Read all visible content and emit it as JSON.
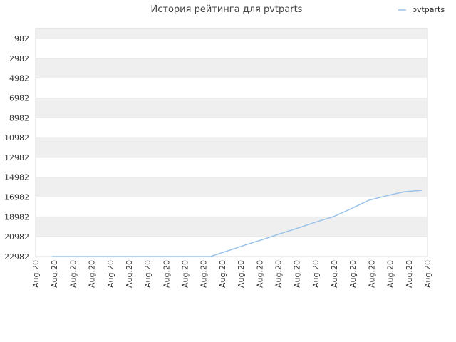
{
  "chart_data": {
    "type": "line",
    "title": "История рейтинга для pvtparts",
    "xlabel": "",
    "ylabel": "",
    "legend_position": "top-right",
    "y_inverted": true,
    "grid": true,
    "band_colors": [
      "#efefef",
      "#ffffff"
    ],
    "y_ticks": [
      982,
      2982,
      4982,
      6982,
      8982,
      10982,
      12982,
      14982,
      16982,
      18982,
      20982,
      22982
    ],
    "ylim": [
      22982,
      0
    ],
    "x_tick_labels": [
      "Aug.20",
      "Aug.20",
      "Aug.20",
      "Aug.20",
      "Aug.20",
      "Aug.20",
      "Aug.20",
      "Aug.20",
      "Aug.20",
      "Aug.20",
      "Aug.20",
      "Aug.20",
      "Aug.20",
      "Aug.20",
      "Aug.20",
      "Aug.20",
      "Aug.20",
      "Aug.20",
      "Aug.20",
      "Aug.20",
      "Aug.20",
      "Aug.20"
    ],
    "series": [
      {
        "name": "pvtparts",
        "color": "#99c3ea",
        "values": [
          22982,
          22982,
          22982,
          22982,
          22982,
          22982,
          22982,
          22982,
          22982,
          22982,
          22400,
          21800,
          21250,
          20650,
          20100,
          19500,
          18950,
          18150,
          17300,
          16850,
          16450,
          16300
        ]
      }
    ]
  }
}
